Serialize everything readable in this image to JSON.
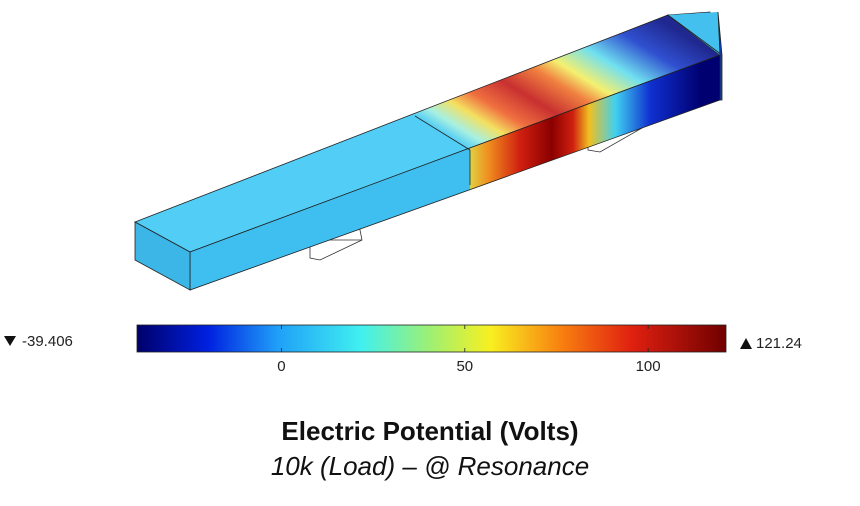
{
  "colorbar": {
    "min": -39.406,
    "max": 121.24,
    "ticks": [
      0,
      50,
      100
    ]
  },
  "title": "Electric Potential (Volts)",
  "subtitle": "10k (Load) – @ Resonance"
}
